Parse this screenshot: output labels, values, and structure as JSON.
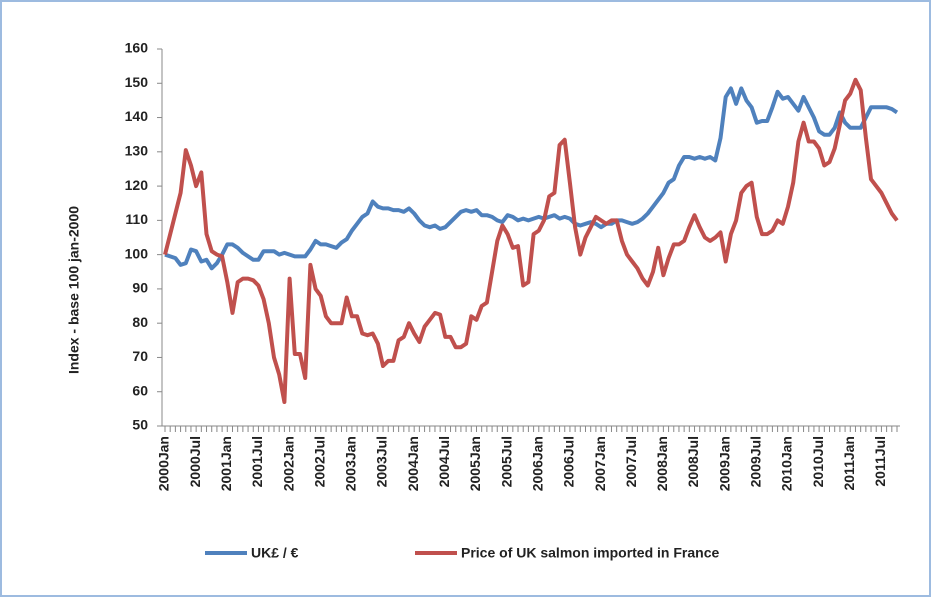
{
  "chart_data": {
    "type": "line",
    "y_label": "Index - base 100 jan-2000",
    "categories": [
      "2000Jan",
      null,
      null,
      null,
      null,
      null,
      "2000Jul",
      null,
      null,
      null,
      null,
      null,
      "2001Jan",
      null,
      null,
      null,
      null,
      null,
      "2001Jul",
      null,
      null,
      null,
      null,
      null,
      "2002Jan",
      null,
      null,
      null,
      null,
      null,
      "2002Jul",
      null,
      null,
      null,
      null,
      null,
      "2003Jan",
      null,
      null,
      null,
      null,
      null,
      "2003Jul",
      null,
      null,
      null,
      null,
      null,
      "2004Jan",
      null,
      null,
      null,
      null,
      null,
      "2004Jul",
      null,
      null,
      null,
      null,
      null,
      "2005Jan",
      null,
      null,
      null,
      null,
      null,
      "2005Jul",
      null,
      null,
      null,
      null,
      null,
      "2006Jan",
      null,
      null,
      null,
      null,
      null,
      "2006Jul",
      null,
      null,
      null,
      null,
      null,
      "2007Jan",
      null,
      null,
      null,
      null,
      null,
      "2007Jul",
      null,
      null,
      null,
      null,
      null,
      "2008Jan",
      null,
      null,
      null,
      null,
      null,
      "2008Jul",
      null,
      null,
      null,
      null,
      null,
      "2009Jan",
      null,
      null,
      null,
      null,
      null,
      "2009Jul",
      null,
      null,
      null,
      null,
      null,
      "2010Jan",
      null,
      null,
      null,
      null,
      null,
      "2010Jul",
      null,
      null,
      null,
      null,
      null,
      "2011Jan",
      null,
      null,
      null,
      null,
      null,
      "2011Jul",
      null,
      null,
      null
    ],
    "series": [
      {
        "name": "UK£ / €",
        "color": "#4f81bd",
        "values": [
          100,
          99.5,
          99,
          97,
          97.5,
          101.5,
          101,
          98,
          98.5,
          96,
          97.5,
          100,
          103,
          103,
          102,
          100.5,
          99.5,
          98.5,
          98.5,
          101,
          101,
          101,
          100,
          100.5,
          100,
          99.5,
          99.5,
          99.5,
          101.5,
          104,
          103,
          103,
          102.5,
          102,
          103.5,
          104.5,
          107,
          109,
          111,
          112,
          115.5,
          114,
          113.5,
          113.5,
          113,
          113,
          112.5,
          113.5,
          112,
          110,
          108.5,
          108,
          108.5,
          107.5,
          108,
          109.5,
          111,
          112.5,
          113,
          112.5,
          113,
          111.5,
          111.5,
          111,
          110,
          109.5,
          111.5,
          111,
          110,
          110.5,
          110,
          110.5,
          111,
          110.5,
          111,
          111.5,
          110.5,
          111,
          110.5,
          109,
          108.5,
          109,
          109.5,
          109,
          108,
          109,
          109,
          110,
          110,
          109.5,
          109,
          109.5,
          110.5,
          112,
          114,
          116,
          118,
          121,
          122,
          126,
          128.5,
          128.5,
          128,
          128.5,
          128,
          128.5,
          127.5,
          134,
          146,
          148.5,
          144,
          148.5,
          145,
          143,
          138.5,
          139,
          139,
          143,
          147.5,
          145.5,
          146,
          144,
          142,
          146,
          143,
          140,
          136,
          135,
          135,
          137,
          141.5,
          138.5,
          137,
          137,
          137,
          140,
          143,
          143,
          143,
          143,
          142.5,
          141.5
        ]
      },
      {
        "name": "Price of UK salmon imported in France",
        "color": "#c0504d",
        "values": [
          100,
          106,
          112,
          118,
          130.5,
          126,
          120,
          124,
          106,
          101,
          100,
          99.5,
          92,
          83,
          92,
          93,
          93,
          92.5,
          91,
          87,
          80,
          70,
          65,
          57,
          93,
          71,
          71,
          64,
          97,
          90,
          88,
          82,
          80,
          80,
          80,
          87.5,
          82,
          82,
          77,
          76.5,
          77,
          74,
          67.5,
          69,
          69,
          75,
          76,
          80,
          77,
          74.5,
          79,
          81,
          83,
          82.5,
          76,
          76,
          73,
          73,
          74,
          82,
          81,
          85,
          86,
          95,
          104,
          108.5,
          106,
          102,
          102.5,
          91,
          92,
          106,
          107,
          110,
          117,
          118,
          132,
          133.5,
          121,
          108,
          100,
          105,
          108,
          111,
          110,
          109,
          110,
          110,
          104,
          100,
          98,
          96,
          93,
          91,
          95,
          102,
          94,
          99,
          103,
          103,
          104,
          108,
          111.5,
          108,
          105,
          104,
          105,
          106.5,
          98,
          106,
          110,
          118,
          120,
          121,
          111,
          106,
          106,
          107,
          110,
          109,
          114,
          121,
          133,
          138.5,
          133,
          133,
          131,
          126,
          127,
          131,
          138,
          145,
          147,
          151,
          148,
          134,
          122,
          120,
          118,
          115,
          112,
          110
        ]
      }
    ],
    "ylim": [
      50,
      160
    ],
    "yticks": [
      50,
      60,
      70,
      80,
      90,
      100,
      110,
      120,
      130,
      140,
      150,
      160
    ],
    "grid": false
  }
}
